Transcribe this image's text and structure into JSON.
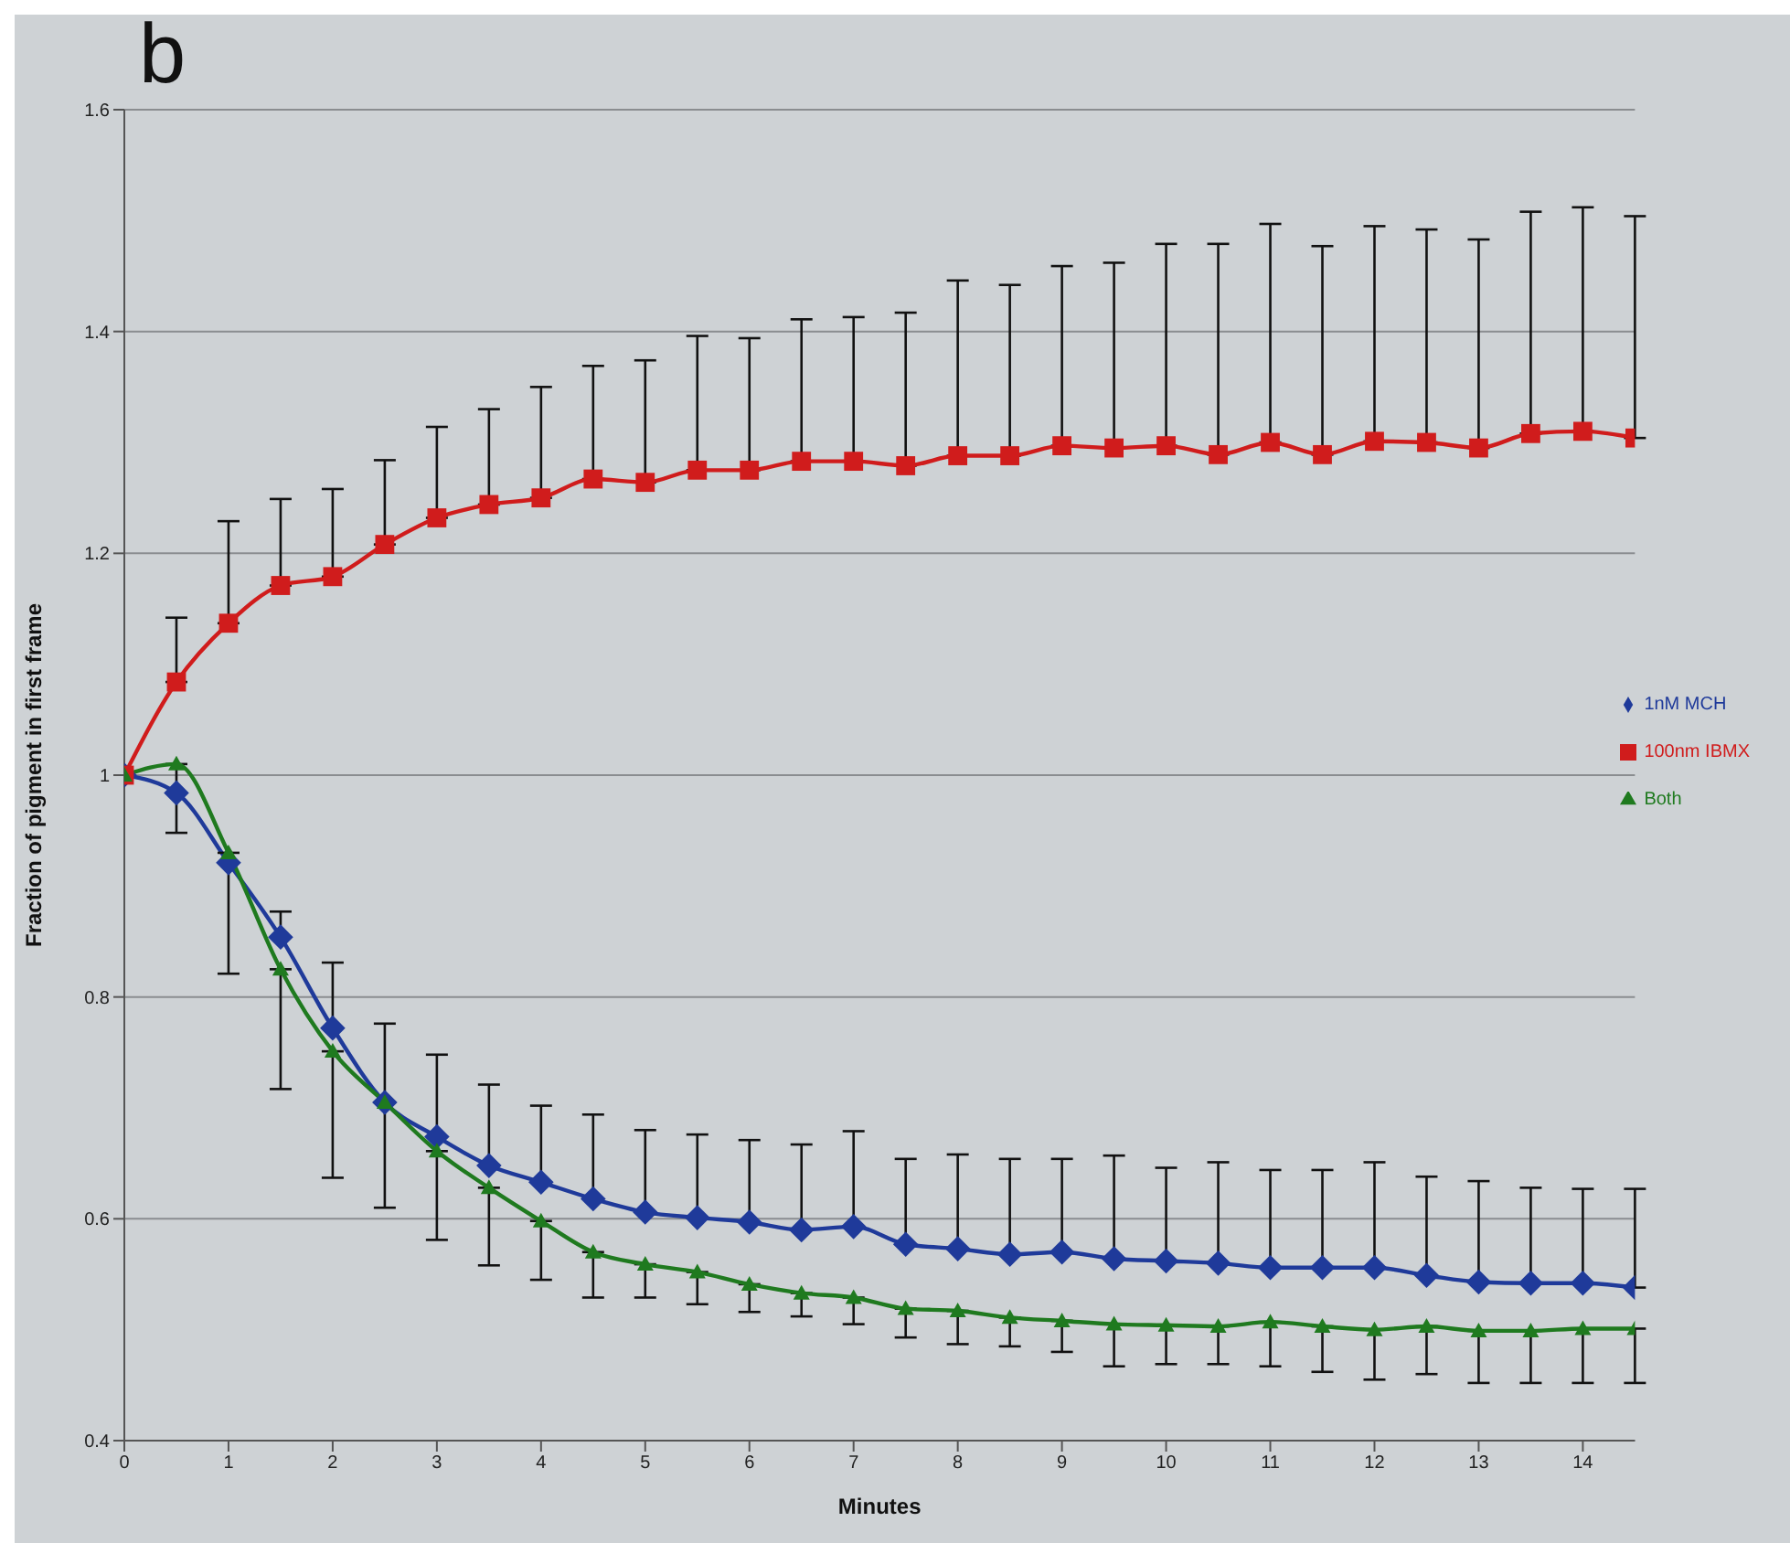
{
  "chart_data": {
    "type": "line",
    "title": "b",
    "xlabel": "Minutes",
    "ylabel": "Fraction of pigment in first frame",
    "x": [
      0,
      0.5,
      1,
      1.5,
      2,
      2.5,
      3,
      3.5,
      4,
      4.5,
      5,
      5.5,
      6,
      6.5,
      7,
      7.5,
      8,
      8.5,
      9,
      9.5,
      10,
      10.5,
      11,
      11.5,
      12,
      12.5,
      13,
      13.5,
      14,
      14.5
    ],
    "xlim": [
      0,
      14.5
    ],
    "xticks": [
      0,
      1,
      2,
      3,
      4,
      5,
      6,
      7,
      8,
      9,
      10,
      11,
      12,
      13,
      14
    ],
    "ylim": [
      0.4,
      1.6
    ],
    "yticks": [
      0.4,
      0.6,
      0.8,
      1,
      1.2,
      1.4,
      1.6
    ],
    "grid": "y",
    "legend": "right",
    "series": [
      {
        "name": "1nM MCH",
        "color": "#1f3a9a",
        "marker": "diamond",
        "values": [
          1.0,
          0.984,
          0.921,
          0.854,
          0.772,
          0.705,
          0.674,
          0.648,
          0.633,
          0.618,
          0.606,
          0.601,
          0.597,
          0.59,
          0.593,
          0.577,
          0.573,
          0.568,
          0.57,
          0.564,
          0.562,
          0.56,
          0.556,
          0.556,
          0.556,
          0.549,
          0.543,
          0.542,
          0.542,
          0.538
        ],
        "errors": [
          null,
          null,
          null,
          [
            0.854,
            0.877
          ],
          [
            0.772,
            0.831
          ],
          [
            0.705,
            0.776
          ],
          [
            0.674,
            0.748
          ],
          [
            0.648,
            0.721
          ],
          [
            0.633,
            0.702
          ],
          [
            0.618,
            0.694
          ],
          [
            0.606,
            0.68
          ],
          [
            0.601,
            0.676
          ],
          [
            0.597,
            0.671
          ],
          [
            0.59,
            0.667
          ],
          [
            0.593,
            0.679
          ],
          [
            0.577,
            0.654
          ],
          [
            0.573,
            0.658
          ],
          [
            0.568,
            0.654
          ],
          [
            0.57,
            0.654
          ],
          [
            0.564,
            0.657
          ],
          [
            0.562,
            0.646
          ],
          [
            0.56,
            0.651
          ],
          [
            0.556,
            0.644
          ],
          [
            0.556,
            0.644
          ],
          [
            0.556,
            0.651
          ],
          [
            0.549,
            0.638
          ],
          [
            0.543,
            0.634
          ],
          [
            0.542,
            0.628
          ],
          [
            0.542,
            0.627
          ],
          [
            0.538,
            0.627
          ]
        ]
      },
      {
        "name": "100nm IBMX",
        "color": "#d01c1c",
        "marker": "square",
        "values": [
          1.0,
          1.084,
          1.137,
          1.171,
          1.179,
          1.208,
          1.232,
          1.244,
          1.25,
          1.267,
          1.264,
          1.275,
          1.275,
          1.283,
          1.283,
          1.279,
          1.288,
          1.288,
          1.297,
          1.295,
          1.297,
          1.289,
          1.3,
          1.289,
          1.301,
          1.3,
          1.295,
          1.308,
          1.31,
          1.304
        ],
        "errors": [
          null,
          [
            1.084,
            1.142
          ],
          [
            1.137,
            1.229
          ],
          [
            1.171,
            1.249
          ],
          [
            1.179,
            1.258
          ],
          [
            1.208,
            1.284
          ],
          [
            1.232,
            1.314
          ],
          [
            1.244,
            1.33
          ],
          [
            1.25,
            1.35
          ],
          [
            1.267,
            1.369
          ],
          [
            1.264,
            1.374
          ],
          [
            1.275,
            1.396
          ],
          [
            1.275,
            1.394
          ],
          [
            1.283,
            1.411
          ],
          [
            1.283,
            1.413
          ],
          [
            1.279,
            1.417
          ],
          [
            1.288,
            1.446
          ],
          [
            1.288,
            1.442
          ],
          [
            1.297,
            1.459
          ],
          [
            1.295,
            1.462
          ],
          [
            1.297,
            1.479
          ],
          [
            1.289,
            1.479
          ],
          [
            1.3,
            1.497
          ],
          [
            1.289,
            1.477
          ],
          [
            1.301,
            1.495
          ],
          [
            1.3,
            1.492
          ],
          [
            1.295,
            1.483
          ],
          [
            1.308,
            1.508
          ],
          [
            1.31,
            1.512
          ],
          [
            1.304,
            1.504
          ]
        ]
      },
      {
        "name": "Both",
        "color": "#1f7a1f",
        "marker": "triangle",
        "values": [
          1.0,
          1.01,
          0.93,
          0.825,
          0.751,
          0.705,
          0.661,
          0.628,
          0.598,
          0.57,
          0.559,
          0.552,
          0.541,
          0.533,
          0.529,
          0.519,
          0.517,
          0.511,
          0.508,
          0.505,
          0.504,
          0.503,
          0.507,
          0.503,
          0.5,
          0.503,
          0.499,
          0.499,
          0.501,
          0.501
        ],
        "errors": [
          null,
          [
            0.948,
            1.01
          ],
          [
            0.821,
            0.93
          ],
          [
            0.717,
            0.825
          ],
          [
            0.637,
            0.751
          ],
          [
            0.61,
            0.705
          ],
          [
            0.581,
            0.661
          ],
          [
            0.558,
            0.628
          ],
          [
            0.545,
            0.598
          ],
          [
            0.529,
            0.57
          ],
          [
            0.529,
            0.559
          ],
          [
            0.523,
            0.552
          ],
          [
            0.516,
            0.541
          ],
          [
            0.512,
            0.533
          ],
          [
            0.505,
            0.529
          ],
          [
            0.493,
            0.519
          ],
          [
            0.487,
            0.517
          ],
          [
            0.485,
            0.511
          ],
          [
            0.48,
            0.508
          ],
          [
            0.467,
            0.505
          ],
          [
            0.469,
            0.504
          ],
          [
            0.469,
            0.503
          ],
          [
            0.467,
            0.507
          ],
          [
            0.462,
            0.503
          ],
          [
            0.455,
            0.5
          ],
          [
            0.46,
            0.503
          ],
          [
            0.452,
            0.499
          ],
          [
            0.452,
            0.499
          ],
          [
            0.452,
            0.501
          ],
          [
            0.452,
            0.501
          ]
        ]
      }
    ]
  }
}
